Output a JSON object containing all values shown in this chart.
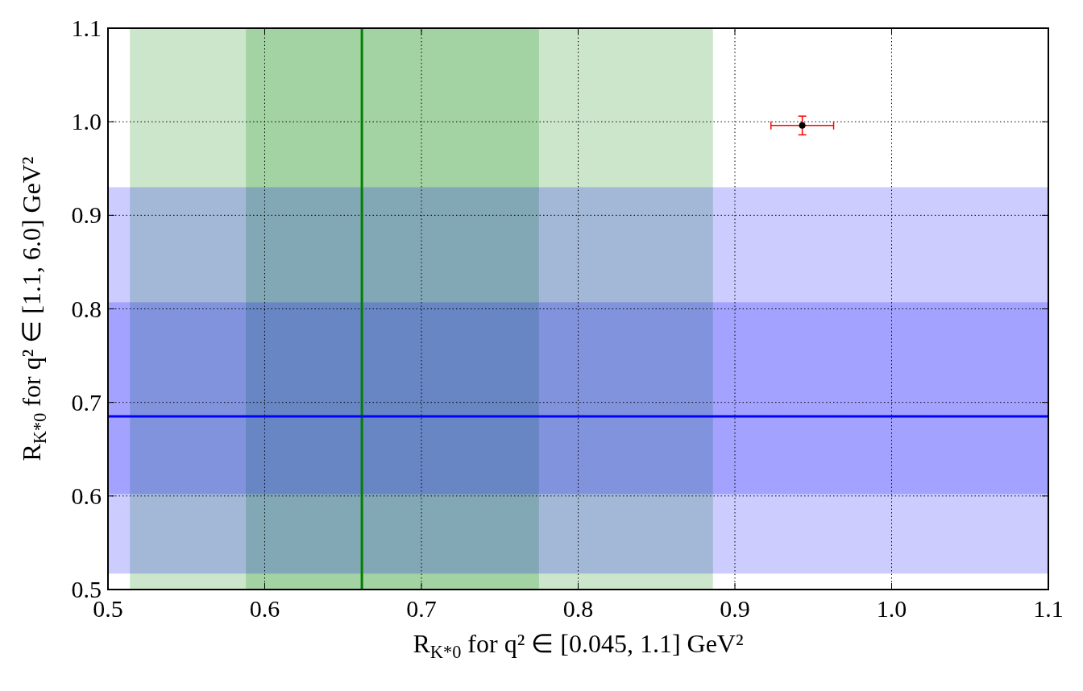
{
  "chart_data": {
    "type": "scatter",
    "xlabel": "R$_{K*0}$ for q² ∈ [0.045, 1.1] GeV²",
    "ylabel": "R$_{K*0}$ for q² ∈ [1.1, 6.0] GeV²",
    "x": [
      0.943
    ],
    "series": [
      {
        "color": "#000000",
        "values": [
          0.996
        ],
        "errors": [
          0.01
        ],
        "xerrors": [
          0.02
        ]
      }
    ],
    "marker": "circle",
    "xlim": [
      0.5,
      1.1
    ],
    "ylim": [
      0.5,
      1.1
    ],
    "xticks": [
      0.5,
      0.6,
      0.7,
      0.8,
      0.9,
      {
        "value": 1,
        "label": "1.0"
      },
      1.1
    ],
    "yticks": [
      0.5,
      0.6,
      0.7,
      0.8,
      0.9,
      {
        "value": 1,
        "label": "1.0"
      },
      1.1
    ],
    "grid": true,
    "bands": [
      {
        "axis": "x",
        "from": 0.514,
        "to": 0.886,
        "color": "#008000"
      },
      {
        "axis": "x",
        "from": 0.588,
        "to": 0.775,
        "color": "#008000"
      },
      {
        "axis": "y",
        "from": 0.517,
        "to": 0.93,
        "color": "#0000ff"
      },
      {
        "axis": "y",
        "from": 0.602,
        "to": 0.807,
        "color": "#0000ff"
      }
    ],
    "ref_lines": [
      {
        "axis": "x",
        "value": 0.662,
        "color": "#008000"
      },
      {
        "axis": "y",
        "value": 0.685,
        "color": "#0000ff"
      }
    ]
  }
}
